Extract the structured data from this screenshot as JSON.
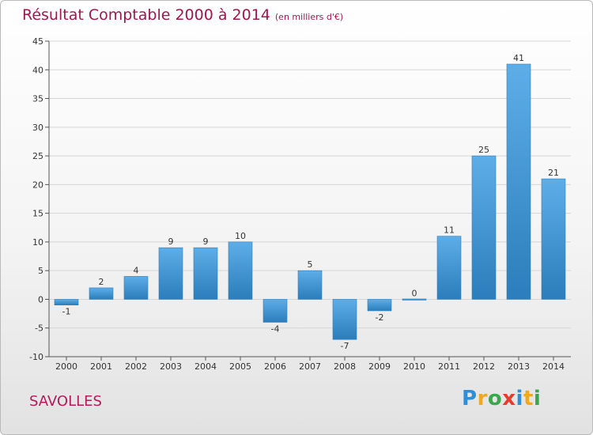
{
  "page": {
    "title": "Résultat Comptable 2000 à 2014",
    "unit": "(en milliers d'€)",
    "commune": "SAVOLLES",
    "logo": "Proxiti"
  },
  "logo_letters": [
    {
      "ch": "P",
      "color": "#2f8ed6"
    },
    {
      "ch": "r",
      "color": "#f2a81d"
    },
    {
      "ch": "o",
      "color": "#3aa74a"
    },
    {
      "ch": "x",
      "color": "#e63b2e"
    },
    {
      "ch": "i",
      "color": "#2f8ed6"
    },
    {
      "ch": "t",
      "color": "#f2a81d"
    },
    {
      "ch": "i",
      "color": "#3aa74a"
    }
  ],
  "colors": {
    "title": "#a0164e",
    "bar_light": "#5daee8",
    "bar_dark": "#2b7dbb",
    "grid": "#d6d6d6"
  },
  "chart_data": {
    "type": "bar",
    "title": "Résultat Comptable 2000 à 2014",
    "subtitle": "(en milliers d'€)",
    "categories": [
      "2000",
      "2001",
      "2002",
      "2003",
      "2004",
      "2005",
      "2006",
      "2007",
      "2008",
      "2009",
      "2010",
      "2011",
      "2012",
      "2013",
      "2014"
    ],
    "values": [
      -1,
      2,
      4,
      9,
      9,
      10,
      -4,
      5,
      -7,
      -2,
      0,
      11,
      25,
      41,
      21
    ],
    "ylim": [
      -10,
      45
    ],
    "yticks": [
      -10,
      -5,
      0,
      5,
      10,
      15,
      20,
      25,
      30,
      35,
      40,
      45
    ],
    "grid": true,
    "legend": "none"
  }
}
